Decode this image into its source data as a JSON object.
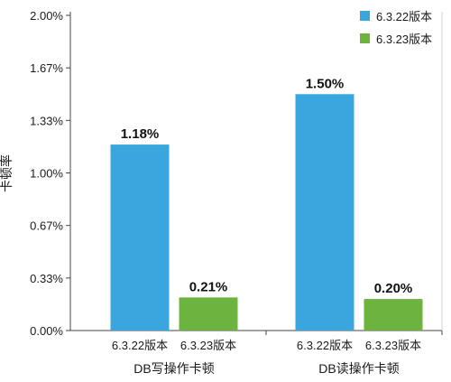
{
  "chart_data": {
    "type": "bar",
    "ylabel": "卡顿率",
    "ylim": [
      0,
      0.02
    ],
    "yticks": [
      "0.00%",
      "0.33%",
      "0.67%",
      "1.00%",
      "1.33%",
      "1.67%",
      "2.00%"
    ],
    "groups": [
      {
        "label": "DB写操作卡顿",
        "bars": [
          {
            "series": "6.3.22版本",
            "category": "6.3.22版本",
            "value": 0.0118,
            "label": "1.18%"
          },
          {
            "series": "6.3.23版本",
            "category": "6.3.23版本",
            "value": 0.0021,
            "label": "0.21%"
          }
        ]
      },
      {
        "label": "DB读操作卡顿",
        "bars": [
          {
            "series": "6.3.22版本",
            "category": "6.3.22版本",
            "value": 0.015,
            "label": "1.50%"
          },
          {
            "series": "6.3.23版本",
            "category": "6.3.23版本",
            "value": 0.002,
            "label": "0.20%"
          }
        ]
      }
    ],
    "series": [
      {
        "name": "6.3.22版本",
        "color": "#3aa6de"
      },
      {
        "name": "6.3.23版本",
        "color": "#6cb33f"
      }
    ],
    "grid": false,
    "legend": "top-right"
  }
}
